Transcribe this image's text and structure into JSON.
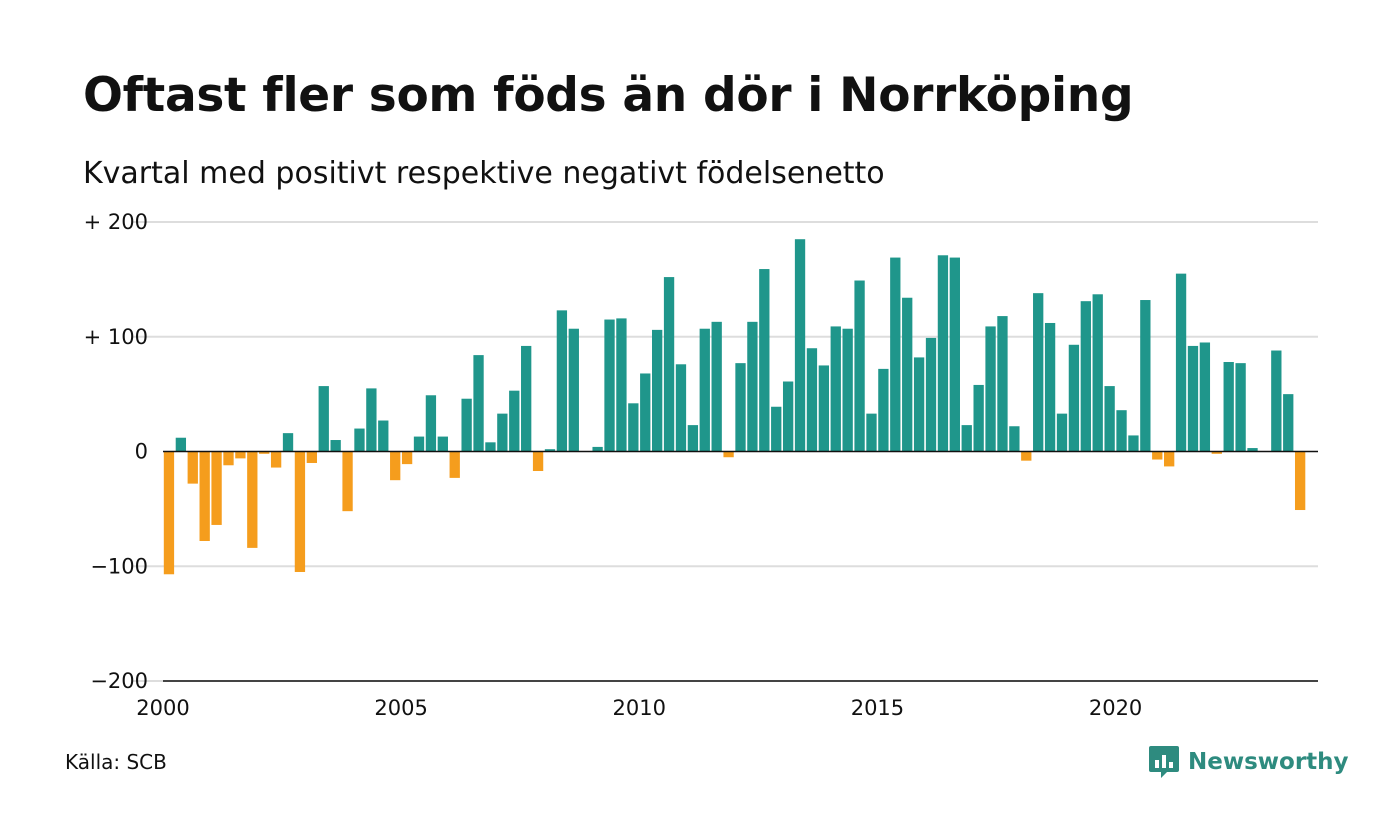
{
  "header": {
    "title": "Oftast fler som föds än dör i Norrköping",
    "subtitle": "Kvartal med positivt respektive negativt födelsenetto"
  },
  "footer": {
    "source": "Källa: SCB",
    "brand": "Newsworthy"
  },
  "colors": {
    "positive": "#1f968b",
    "negative": "#f59d1d",
    "grid": "#dddddd",
    "zero_line": "#111111",
    "brand": "#2e8b7f"
  },
  "icons": {
    "brand_logo": "bar-chart-speech-bubble-icon"
  },
  "chart_data": {
    "type": "bar",
    "title": "Oftast fler som föds än dör i Norrköping",
    "subtitle": "Kvartal med positivt respektive negativt födelsenetto",
    "x_start": 2000,
    "x_step": 0.25,
    "xlim": [
      2000,
      2024.25
    ],
    "ylim": [
      -200,
      200
    ],
    "x_ticks": [
      2000,
      2005,
      2010,
      2015,
      2020
    ],
    "x_tick_labels": [
      "2000",
      "2005",
      "2010",
      "2015",
      "2020"
    ],
    "y_ticks": [
      200,
      100,
      0,
      -100,
      -200
    ],
    "y_tick_labels": [
      "+ 200",
      "+ 100",
      "0",
      "−100",
      "−200"
    ],
    "grid": true,
    "legend": "none",
    "values": [
      -107,
      12,
      -28,
      -78,
      -64,
      -12,
      -6,
      -84,
      -2,
      -14,
      16,
      -105,
      -10,
      57,
      10,
      -52,
      20,
      55,
      27,
      -25,
      -11,
      13,
      49,
      13,
      -23,
      46,
      84,
      8,
      33,
      53,
      92,
      -17,
      2,
      123,
      107,
      0,
      4,
      115,
      116,
      42,
      68,
      106,
      152,
      76,
      23,
      107,
      113,
      -5,
      77,
      113,
      159,
      39,
      61,
      185,
      90,
      75,
      109,
      107,
      149,
      33,
      72,
      169,
      134,
      82,
      99,
      171,
      169,
      23,
      58,
      109,
      118,
      22,
      -8,
      138,
      112,
      33,
      93,
      131,
      137,
      57,
      36,
      14,
      132,
      -7,
      -13,
      155,
      92,
      95,
      -2,
      78,
      77,
      3,
      0,
      88,
      50,
      -51
    ]
  }
}
